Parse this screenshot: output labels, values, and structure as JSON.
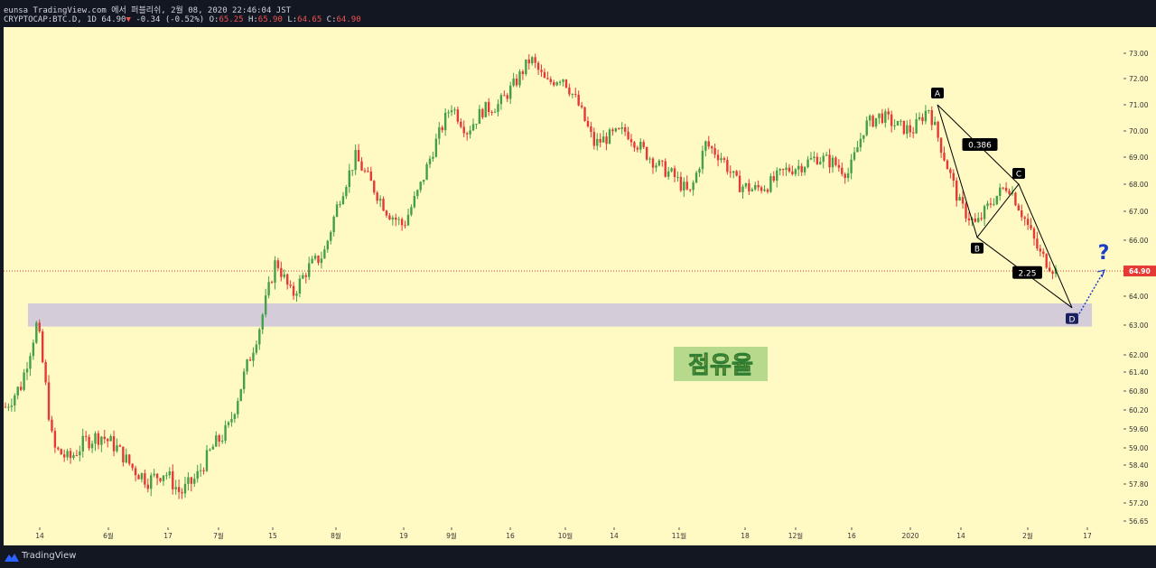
{
  "header": {
    "line1": "eunsa TradingView.com 에서 퍼블리쉬, 2월 08, 2020 22:46:04 JST",
    "symbol": "CRYPTOCAP:BTC.D, 1D",
    "last": "64.90",
    "change_arrow": "▼",
    "change": "-0.34 (-0.52%)",
    "o_label": "O:",
    "o": "65.25",
    "h_label": "H:",
    "h": "65.90",
    "l_label": "L:",
    "l": "64.65",
    "c_label": "C:",
    "c": "64.90"
  },
  "footer": {
    "brand": "TradingView"
  },
  "colors": {
    "bg": "#fff9c4",
    "up": "#43a047",
    "down": "#e53935",
    "zone": "#cfc8dc",
    "price_line": "#e53935",
    "pattern": "#000000",
    "question": "#1a3ec4"
  },
  "chart_data": {
    "type": "candlestick",
    "symbol": "CRYPTOCAP:BTC.D",
    "interval": "1D",
    "ylim": [
      56.3,
      73.6
    ],
    "y_ticks": [
      "73.00",
      "72.00",
      "71.00",
      "70.00",
      "69.00",
      "68.00",
      "67.00",
      "66.00",
      "65.00",
      "64.00",
      "63.00",
      "62.00",
      "61.40",
      "60.80",
      "60.20",
      "59.60",
      "59.00",
      "58.40",
      "57.80",
      "57.20",
      "56.65"
    ],
    "x_ticks": [
      "14",
      "6월",
      "17",
      "7월",
      "15",
      "8월",
      "19",
      "9월",
      "16",
      "10월",
      "14",
      "11월",
      "18",
      "12월",
      "16",
      "2020",
      "14",
      "2월",
      "17"
    ],
    "last_price": "64.90",
    "close_path": [
      60.3,
      61.0,
      63.1,
      59.0,
      58.6,
      59.2,
      59.4,
      59.0,
      58.3,
      57.9,
      58.2,
      57.5,
      58.0,
      59.0,
      59.6,
      61.3,
      63.0,
      65.3,
      64.0,
      65.0,
      65.5,
      67.5,
      69.0,
      68.0,
      67.0,
      66.5,
      67.8,
      69.5,
      71.0,
      70.0,
      70.8,
      71.0,
      71.8,
      72.8,
      71.8,
      72.1,
      71.0,
      69.5,
      69.8,
      70.0,
      69.3,
      68.7,
      68.3,
      67.6,
      69.5,
      69.0,
      68.0,
      67.8,
      68.0,
      68.5,
      68.7,
      69.0,
      68.8,
      68.4,
      70.2,
      70.6,
      70.2,
      70.0,
      70.9,
      69.0,
      67.2,
      66.5,
      67.4,
      68.0,
      66.8,
      65.5,
      64.9
    ],
    "pattern_points": [
      {
        "label": "A",
        "value": 71.0
      },
      {
        "label": "B",
        "value": 66.1
      },
      {
        "label": "C",
        "value": 68.0
      },
      {
        "label": "D",
        "value": 63.6
      }
    ],
    "ratios": [
      "0.386",
      "2.25"
    ],
    "projection_label": "?",
    "support_zone": [
      62.95,
      63.75
    ],
    "annotation": "점유율"
  }
}
